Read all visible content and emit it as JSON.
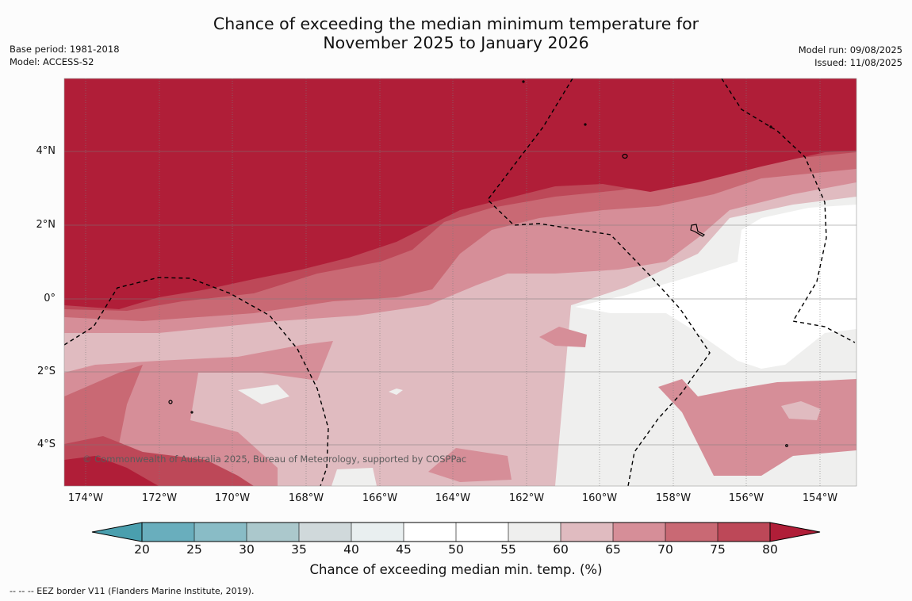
{
  "title_line1": "Chance of exceeding the median minimum temperature for",
  "title_line2": "November 2025 to January 2026",
  "base_period": "Base period: 1981-2018",
  "model": "Model: ACCESS-S2",
  "model_run": "Model run: 09/08/2025",
  "issued": "Issued: 11/08/2025",
  "copyright": "© Commonwealth of Australia 2025, Bureau of Meteorology, supported by COSPPac",
  "colorbar_title": "Chance of exceeding median min. temp. (%)",
  "footnote": "--  --  -- EEZ border V11 (Flanders Marine Institute, 2019).",
  "lat_labels": [
    "4°N",
    "2°N",
    "0°",
    "2°S",
    "4°S"
  ],
  "lon_labels": [
    "174°W",
    "172°W",
    "170°W",
    "168°W",
    "166°W",
    "164°W",
    "162°W",
    "160°W",
    "158°W",
    "156°W",
    "154°W"
  ],
  "colorbar_ticks": [
    "20",
    "25",
    "30",
    "35",
    "40",
    "45",
    "50",
    "55",
    "60",
    "65",
    "70",
    "75",
    "80"
  ],
  "colorbar_colors": {
    "below_20": "#4a9fae",
    "c20_25": "#69aebd",
    "c25_30": "#89bcc6",
    "c30_35": "#abc8cc",
    "c35_40": "#d0d9db",
    "c40_45": "#e9eff0",
    "c45_50": "#ffffff",
    "c50_55": "#ffffff",
    "c55_60": "#efefee",
    "c60_65": "#e0bbc0",
    "c65_70": "#d68e98",
    "c70_75": "#c96974",
    "c75_80": "#bd4858",
    "above_80": "#b01e38"
  }
}
